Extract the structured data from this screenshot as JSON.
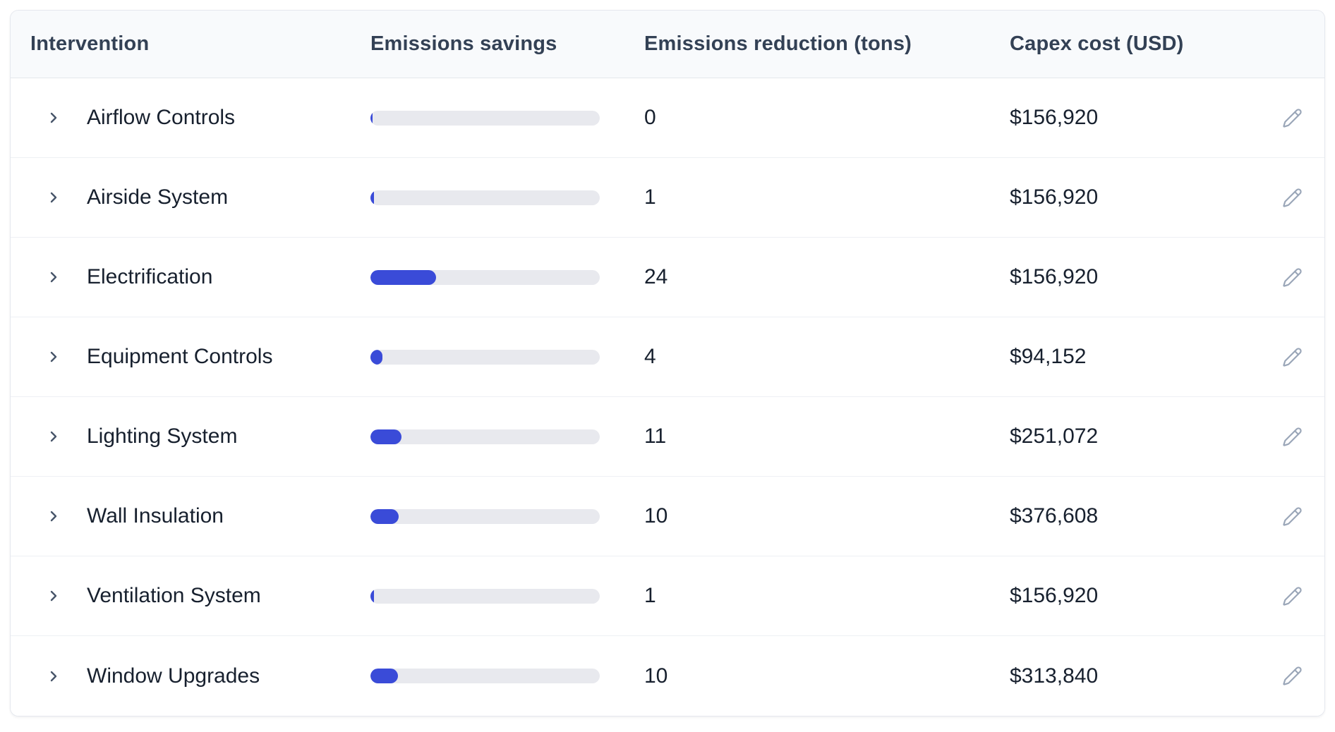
{
  "table": {
    "columns": [
      "Intervention",
      "Emissions savings",
      "Emissions reduction (tons)",
      "Capex cost (USD)"
    ],
    "rows": [
      {
        "name": "Airflow Controls",
        "bar_pct": 1.0,
        "reduction": "0",
        "capex": "$156,920"
      },
      {
        "name": "Airside System",
        "bar_pct": 1.5,
        "reduction": "1",
        "capex": "$156,920"
      },
      {
        "name": "Electrification",
        "bar_pct": 28.5,
        "reduction": "24",
        "capex": "$156,920"
      },
      {
        "name": "Equipment Controls",
        "bar_pct": 5.2,
        "reduction": "4",
        "capex": "$94,152"
      },
      {
        "name": "Lighting System",
        "bar_pct": 13.5,
        "reduction": "11",
        "capex": "$251,072"
      },
      {
        "name": "Wall Insulation",
        "bar_pct": 12.4,
        "reduction": "10",
        "capex": "$376,608"
      },
      {
        "name": "Ventilation System",
        "bar_pct": 1.5,
        "reduction": "1",
        "capex": "$156,920"
      },
      {
        "name": "Window Upgrades",
        "bar_pct": 12.0,
        "reduction": "10",
        "capex": "$313,840"
      }
    ],
    "colors": {
      "bar_fill": "#3a4bd8",
      "bar_track": "#e8e9ee",
      "header_text": "#334155",
      "row_text": "#17202e",
      "icon_muted": "#9aa6b8",
      "chevron": "#475569",
      "header_bg": "#f8fafc"
    },
    "icons": {
      "expand": "chevron-right-icon",
      "edit": "pencil-icon"
    }
  }
}
